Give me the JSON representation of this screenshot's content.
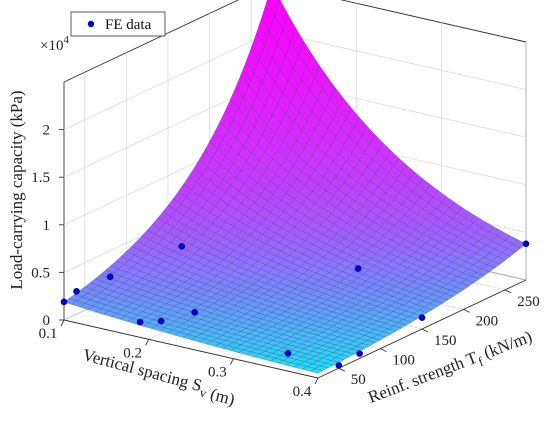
{
  "chart_data": {
    "type": "surface3d",
    "zlabel": "Load-carrying capacity (kPa)",
    "z_multiplier_label": "×10",
    "z_multiplier_exponent": "4",
    "xlabel_main": "Vertical spacing S",
    "xlabel_sub": "v",
    "xlabel_unit": " (m)",
    "ylabel_main": "Reinf. strength T",
    "ylabel_sub": "f",
    "ylabel_unit": " (kN/m)",
    "x_ticks": [
      "0.1",
      "0.2",
      "0.3",
      "0.4"
    ],
    "y_ticks": [
      "50",
      "100",
      "150",
      "200",
      "250"
    ],
    "z_ticks": [
      "0",
      "0.5",
      "1",
      "1.5",
      "2"
    ],
    "xlim": [
      0.1,
      0.4
    ],
    "ylim": [
      25,
      275
    ],
    "zlim": [
      0,
      25000
    ],
    "grid": true,
    "legend": {
      "entries": [
        "FE data"
      ],
      "placement": "top-left"
    },
    "surface_corners_kPa": {
      "Sv0.1_Tf25": 1900,
      "Sv0.1_Tf275": 25000,
      "Sv0.4_Tf25": 500,
      "Sv0.4_Tf275": 3800
    },
    "series": [
      {
        "name": "FE data",
        "color": "#0000cc",
        "points": [
          {
            "x": 0.1,
            "y": 25,
            "z": 1900
          },
          {
            "x": 0.1,
            "y": 40,
            "z": 2400
          },
          {
            "x": 0.12,
            "y": 60,
            "z": 3500
          },
          {
            "x": 0.18,
            "y": 85,
            "z": 6900
          },
          {
            "x": 0.18,
            "y": 35,
            "z": 1000
          },
          {
            "x": 0.2,
            "y": 40,
            "z": 1300
          },
          {
            "x": 0.22,
            "y": 60,
            "z": 1800
          },
          {
            "x": 0.34,
            "y": 50,
            "z": 350
          },
          {
            "x": 0.4,
            "y": 50,
            "z": 300
          },
          {
            "x": 0.4,
            "y": 75,
            "z": 500
          },
          {
            "x": 0.4,
            "y": 150,
            "z": 1200
          },
          {
            "x": 0.3,
            "y": 175,
            "z": 3300
          },
          {
            "x": 0.4,
            "y": 275,
            "z": 3800
          }
        ]
      }
    ],
    "surface_colormap": [
      "#00ffff",
      "#ff00ff"
    ]
  }
}
